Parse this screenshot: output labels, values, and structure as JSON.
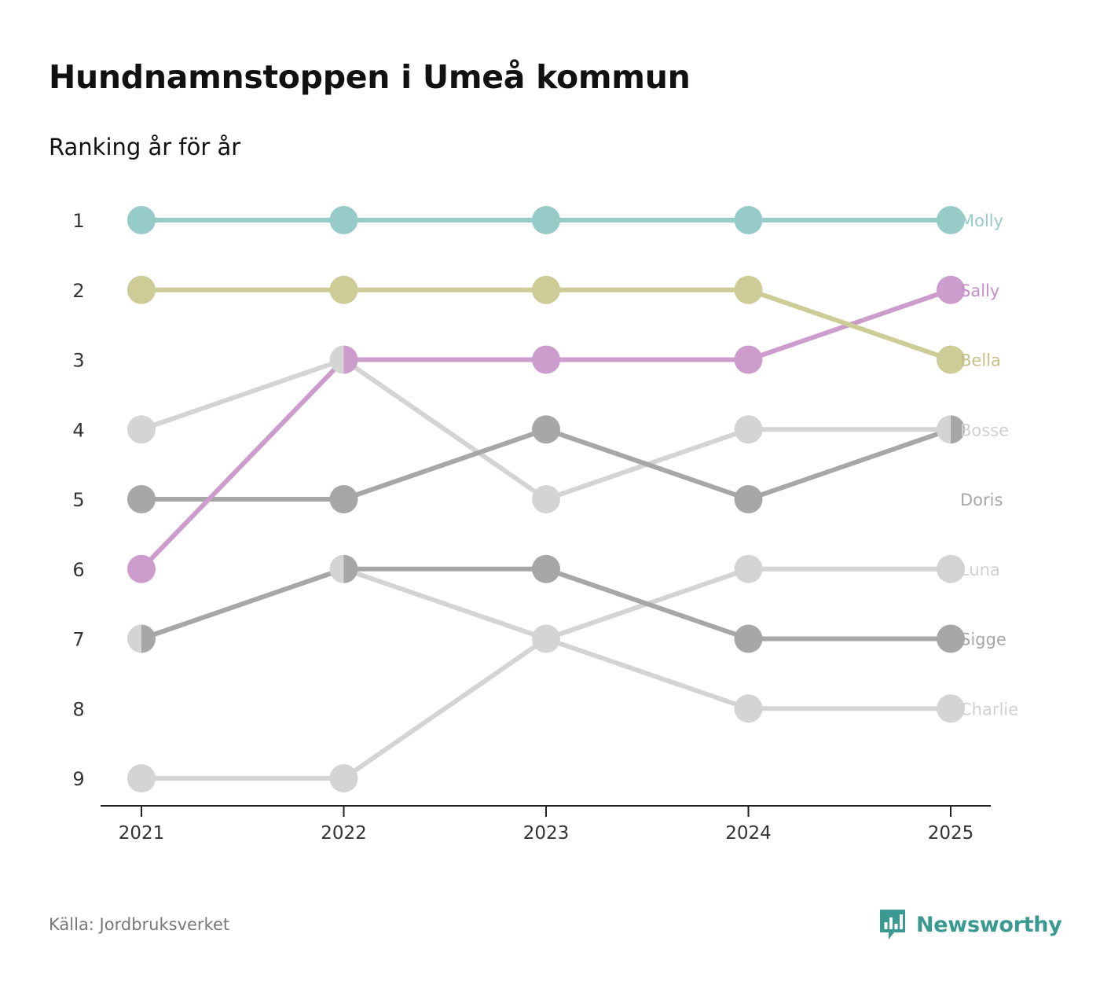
{
  "header": {
    "title": "Hundnamnstoppen i Umeå kommun",
    "subtitle": "Ranking år för år"
  },
  "footer": {
    "source": "Källa: Jordbruksverket",
    "brand": "Newsworthy",
    "brand_color": "#3a9a92",
    "brand_icon": "newsworthy-logo-icon"
  },
  "chart_data": {
    "type": "line",
    "subtype": "bump",
    "title": "Hundnamnstoppen i Umeå kommun",
    "subtitle": "Ranking år för år",
    "x": [
      "2021",
      "2022",
      "2023",
      "2024",
      "2025"
    ],
    "y_ticks": [
      "1",
      "2",
      "3",
      "4",
      "5",
      "6",
      "7",
      "8",
      "9"
    ],
    "ylim": [
      1,
      9
    ],
    "y_inverted": true,
    "xlabel": "",
    "ylabel": "",
    "grid": false,
    "series": [
      {
        "name": "Molly",
        "ranks": [
          1,
          1,
          1,
          1,
          1
        ],
        "color": "#96cbc8",
        "label_color": "#96cbc8",
        "emphasis": "color"
      },
      {
        "name": "Sally",
        "ranks": [
          6,
          3,
          3,
          3,
          2
        ],
        "color": "#cc9ccc",
        "label_color": "#c58fc8",
        "emphasis": "color"
      },
      {
        "name": "Bella",
        "ranks": [
          2,
          2,
          2,
          2,
          3
        ],
        "color": "#cdcc96",
        "label_color": "#c4c287",
        "emphasis": "color"
      },
      {
        "name": "Bosse",
        "ranks": [
          4,
          3,
          5,
          4,
          4
        ],
        "color": "#d4d4d4",
        "label_color": "#d0d0d0",
        "emphasis": "light"
      },
      {
        "name": "Doris",
        "ranks": [
          5,
          5,
          4,
          5,
          4
        ],
        "color": "#a7a7a7",
        "label_color": "#a7a7a7",
        "emphasis": "dark"
      },
      {
        "name": "Luna",
        "ranks": [
          9,
          9,
          7,
          6,
          6
        ],
        "color": "#d4d4d4",
        "label_color": "#d0d0d0",
        "emphasis": "light"
      },
      {
        "name": "Sigge",
        "ranks": [
          7,
          6,
          6,
          7,
          7
        ],
        "color": "#a7a7a7",
        "label_color": "#a7a7a7",
        "emphasis": "dark"
      },
      {
        "name": "Charlie",
        "ranks": [
          7,
          6,
          7,
          8,
          8
        ],
        "color": "#d4d4d4",
        "label_color": "#d0d0d0",
        "emphasis": "light"
      }
    ],
    "end_labels": [
      {
        "name": "Molly",
        "rank": 1
      },
      {
        "name": "Sally",
        "rank": 2
      },
      {
        "name": "Bella",
        "rank": 3
      },
      {
        "name": "Bosse",
        "rank": 4
      },
      {
        "name": "Doris",
        "rank": 5
      },
      {
        "name": "Luna",
        "rank": 6
      },
      {
        "name": "Sigge",
        "rank": 7
      },
      {
        "name": "Charlie",
        "rank": 8
      }
    ]
  }
}
